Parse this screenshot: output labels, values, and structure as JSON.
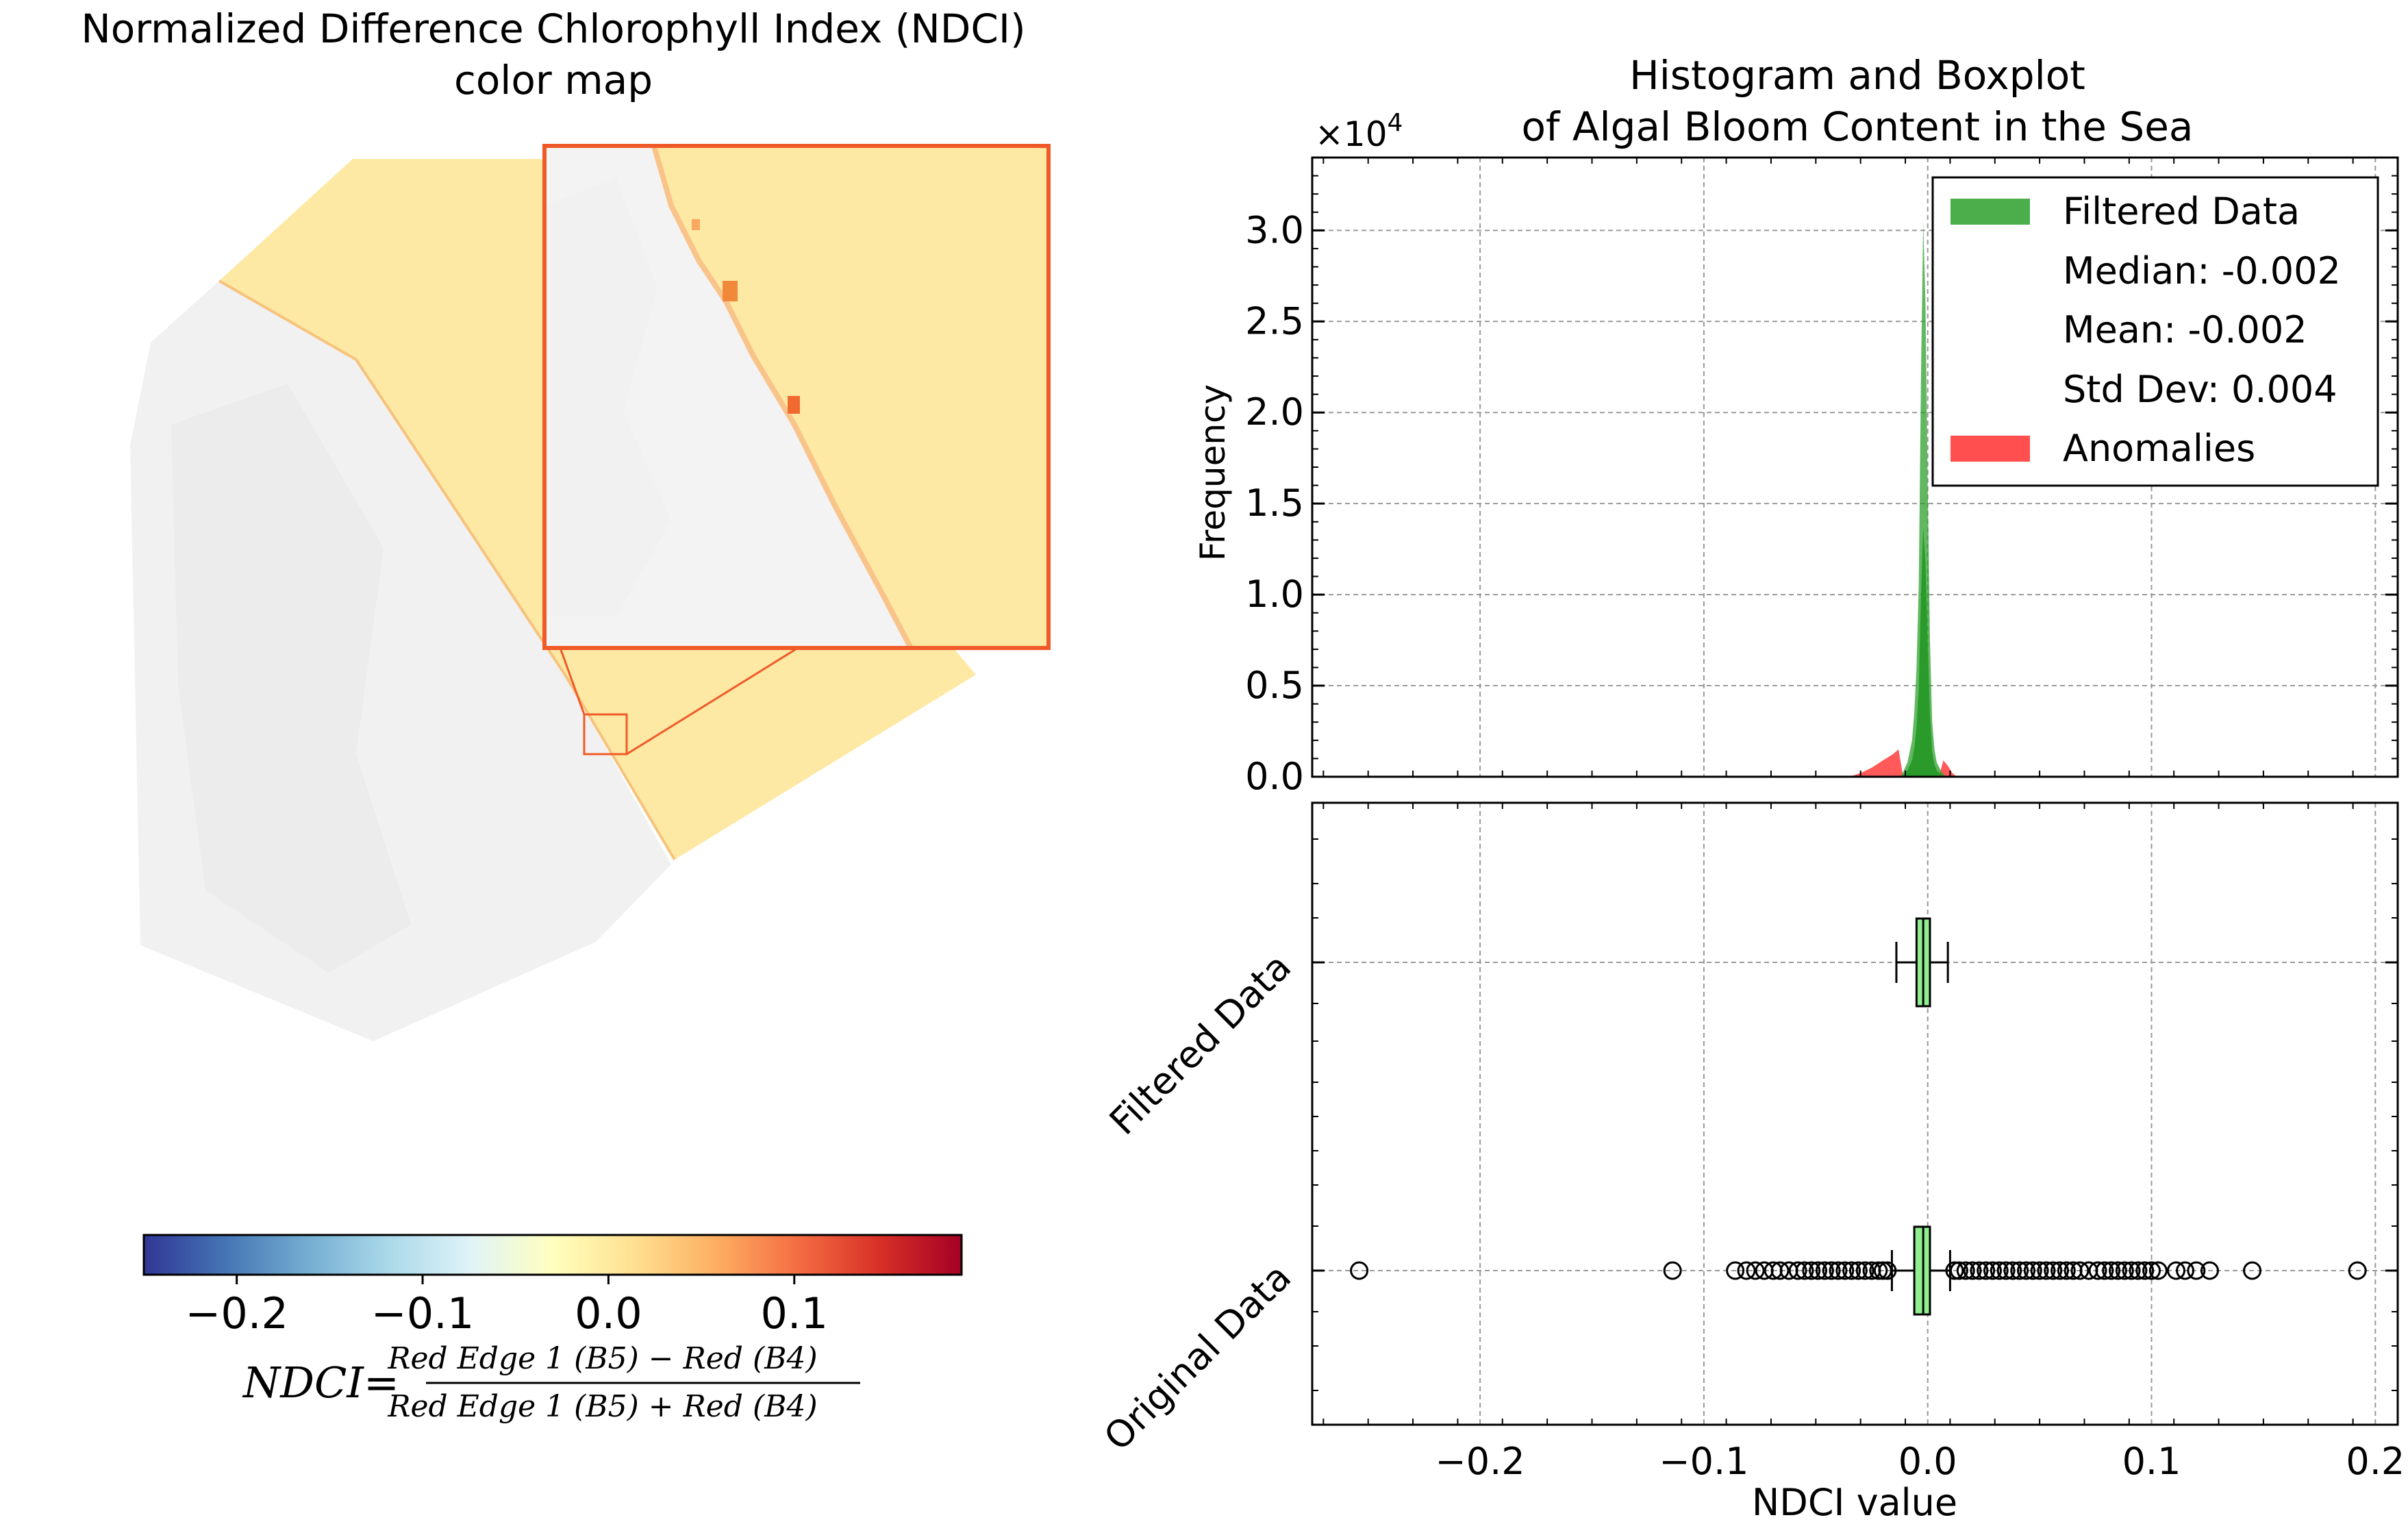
{
  "map": {
    "title_line1": "Normalized Difference Chlorophyll Index (NDCI)",
    "title_line2": "color map",
    "colorbar": {
      "colormap": "RdYlBu_r",
      "range": [
        -0.25,
        0.19
      ],
      "ticks": [
        -0.2,
        -0.1,
        0.0,
        0.1
      ],
      "tick_labels": [
        "−0.2",
        "−0.1",
        "0.0",
        "0.1"
      ],
      "colors": [
        "#313695",
        "#4575b4",
        "#74add1",
        "#abd9e9",
        "#e0f3f8",
        "#ffffbf",
        "#fee090",
        "#fdae61",
        "#f46d43",
        "#d73027",
        "#a50026"
      ]
    },
    "formula": {
      "lhs": "NDCI",
      "eq": "=",
      "numerator": "Red Edge 1 (B5) − Red (B4)",
      "denominator": "Red Edge 1 (B5) + Red (B4)"
    },
    "inset_border_color": "#f05a28",
    "water_color": "#fde9a4",
    "land_color": "#f2f2f2"
  },
  "chart_data": [
    {
      "type": "histogram",
      "title_line1": "Histogram and Boxplot",
      "title_line2": "of Algal Bloom Content in the Sea",
      "xlabel": "",
      "ylabel": "Frequency",
      "y_multiplier": "×10",
      "y_multiplier_exp": "4",
      "xlim": [
        -0.275,
        0.21
      ],
      "ylim": [
        0,
        3.4
      ],
      "yticks": [
        0.0,
        0.5,
        1.0,
        1.5,
        2.0,
        2.5,
        3.0
      ],
      "ytick_labels": [
        "0.0",
        "0.5",
        "1.0",
        "1.5",
        "2.0",
        "2.5",
        "3.0"
      ],
      "xticks": [
        -0.2,
        -0.1,
        0.0,
        0.1,
        0.2
      ],
      "grid": true,
      "legend_position": "top-right",
      "legend": [
        {
          "label": "Filtered Data",
          "color": "#2ca02c"
        },
        {
          "label": "Median: -0.002"
        },
        {
          "label": "Mean: -0.002"
        },
        {
          "label": "Std Dev: 0.004"
        },
        {
          "label": "Anomalies",
          "color": "#ff3030"
        }
      ],
      "series": [
        {
          "name": "Filtered Data",
          "color": "#2ca02c",
          "x": [
            -0.012,
            -0.009,
            -0.007,
            -0.006,
            -0.005,
            -0.004,
            -0.003,
            -0.002,
            -0.001,
            0.0,
            0.001,
            0.002,
            0.003,
            0.004,
            0.006,
            0.008
          ],
          "values": [
            0.0,
            0.08,
            0.2,
            0.35,
            0.6,
            1.05,
            2.2,
            3.05,
            2.6,
            1.6,
            0.75,
            0.3,
            0.15,
            0.08,
            0.03,
            0.0
          ]
        },
        {
          "name": "Anomalies",
          "color": "#ff3030",
          "x": [
            -0.035,
            -0.03,
            -0.025,
            -0.02,
            -0.016,
            -0.013,
            -0.011,
            0.005,
            0.007,
            0.009,
            0.011,
            0.013
          ],
          "values": [
            0.0,
            0.02,
            0.05,
            0.09,
            0.12,
            0.15,
            0.0,
            0.0,
            0.09,
            0.06,
            0.02,
            0.0
          ]
        }
      ]
    },
    {
      "type": "boxplot",
      "xlabel": "NDCI value",
      "xlim": [
        -0.275,
        0.21
      ],
      "xticks": [
        -0.2,
        -0.1,
        0.0,
        0.1,
        0.2
      ],
      "xtick_labels": [
        "−0.2",
        "−0.1",
        "0.0",
        "0.1",
        "0.2"
      ],
      "grid": true,
      "box_color": "#90ee90",
      "categories": [
        "Filtered Data",
        "Original Data"
      ],
      "boxes": [
        {
          "name": "Filtered Data",
          "whisker_low": -0.014,
          "q1": -0.005,
          "median": -0.002,
          "q3": 0.001,
          "whisker_high": 0.009,
          "outliers": []
        },
        {
          "name": "Original Data",
          "whisker_low": -0.016,
          "q1": -0.006,
          "median": -0.002,
          "q3": 0.001,
          "whisker_high": 0.01,
          "outliers": [
            -0.254,
            -0.114,
            -0.086,
            -0.081,
            -0.077,
            -0.073,
            -0.069,
            -0.066,
            -0.062,
            -0.058,
            -0.055,
            -0.052,
            -0.049,
            -0.046,
            -0.043,
            -0.04,
            -0.037,
            -0.034,
            -0.031,
            -0.028,
            -0.025,
            -0.022,
            -0.02,
            -0.018,
            0.012,
            0.014,
            0.017,
            0.02,
            0.023,
            0.026,
            0.029,
            0.032,
            0.035,
            0.038,
            0.041,
            0.044,
            0.047,
            0.05,
            0.053,
            0.056,
            0.059,
            0.062,
            0.065,
            0.068,
            0.072,
            0.076,
            0.079,
            0.082,
            0.085,
            0.088,
            0.091,
            0.094,
            0.097,
            0.1,
            0.103,
            0.111,
            0.115,
            0.12,
            0.126,
            0.145,
            0.192
          ]
        }
      ]
    }
  ]
}
